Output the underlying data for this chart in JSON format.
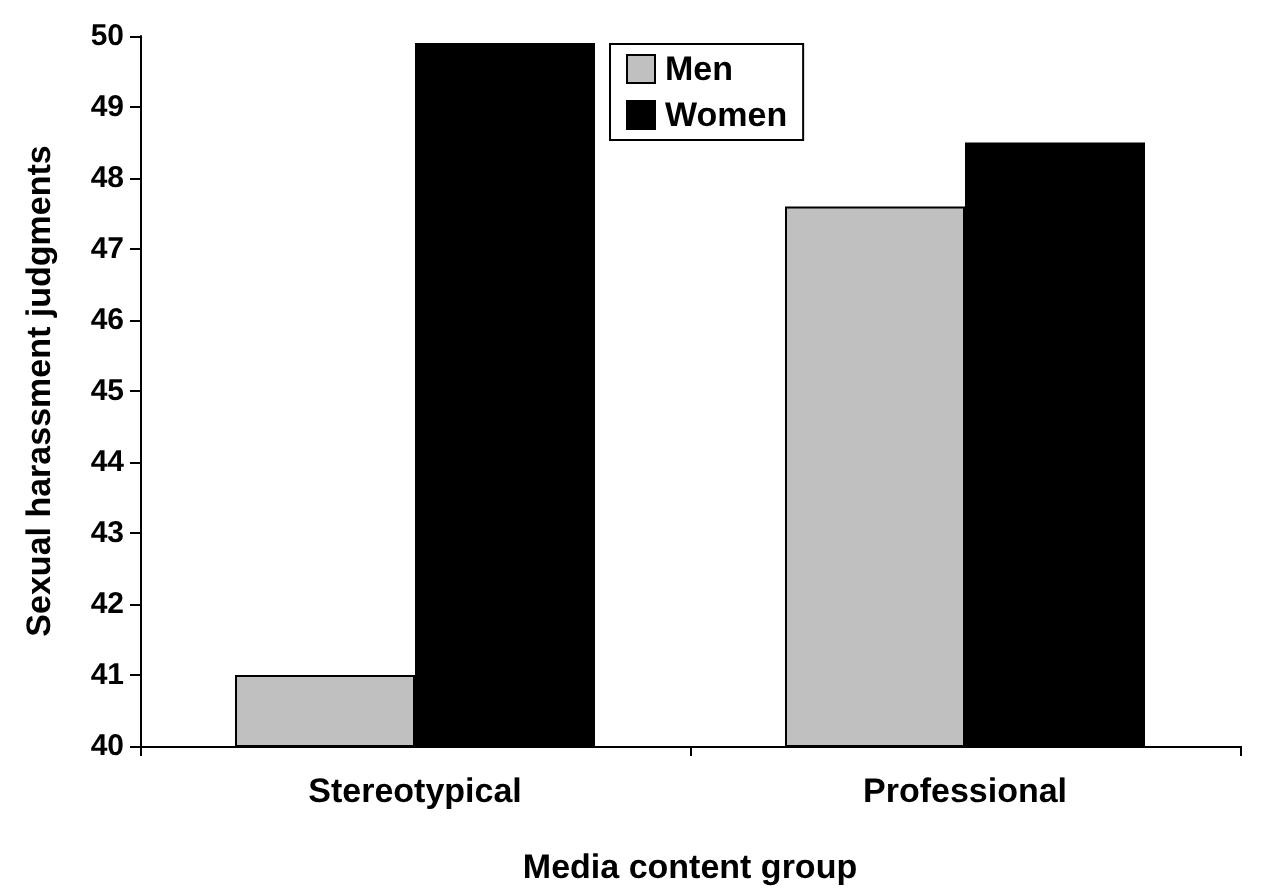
{
  "chart_data": {
    "type": "bar",
    "xlabel": "Media content group",
    "ylabel": "Sexual harassment judgments",
    "categories": [
      "Stereotypical",
      "Professional"
    ],
    "series": [
      {
        "name": "Men",
        "color": "#c0c0c0",
        "values": [
          41.0,
          47.6
        ]
      },
      {
        "name": "Women",
        "color": "#000000",
        "values": [
          49.9,
          48.5
        ]
      }
    ],
    "ylim": [
      40,
      50
    ],
    "yticks": [
      40,
      41,
      42,
      43,
      44,
      45,
      46,
      47,
      48,
      49,
      50
    ],
    "grid": false,
    "legend": "top"
  }
}
